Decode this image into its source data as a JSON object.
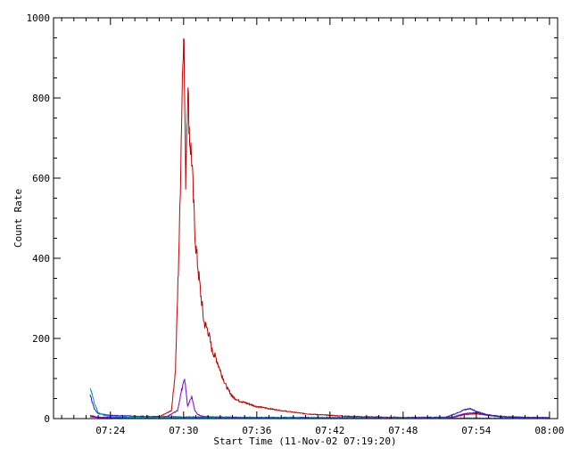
{
  "chart_data": {
    "type": "line",
    "title": "",
    "xlabel": "Start Time (11-Nov-02 07:19:20)",
    "ylabel": "Count Rate",
    "xlim": [
      "07:19:20",
      "08:00:40"
    ],
    "ylim": [
      0,
      1000
    ],
    "grid": false,
    "x_ticks": [
      "07:24",
      "07:30",
      "07:36",
      "07:42",
      "07:48",
      "07:54",
      "08:00"
    ],
    "y_ticks": [
      0,
      200,
      400,
      600,
      800,
      1000
    ],
    "colors": {
      "background": "#ffffff",
      "axes": "#000000",
      "red": "#c00000",
      "purple": "#7b00c8",
      "blue": "#2020d0",
      "cyan": "#00a0b0"
    },
    "series": [
      {
        "color_key": "red",
        "x": [
          "07:22:20",
          "07:23:00",
          "07:24:00",
          "07:26:00",
          "07:28:00",
          "07:29:00",
          "07:29:20",
          "07:29:40",
          "07:29:50",
          "07:30:00",
          "07:30:10",
          "07:30:20",
          "07:30:30",
          "07:30:40",
          "07:30:50",
          "07:31:00",
          "07:31:20",
          "07:31:40",
          "07:32:00",
          "07:32:20",
          "07:32:40",
          "07:33:00",
          "07:33:30",
          "07:34:00",
          "07:34:30",
          "07:35:00",
          "07:36:00",
          "07:38:00",
          "07:40:00",
          "07:42:00",
          "07:44:00",
          "07:46:00",
          "07:48:00",
          "07:50:00",
          "07:52:00",
          "07:53:00",
          "07:54:00",
          "07:56:00",
          "07:58:00",
          "08:00:00"
        ],
        "values": [
          8,
          3,
          2,
          2,
          4,
          20,
          120,
          480,
          750,
          1000,
          600,
          830,
          700,
          650,
          520,
          430,
          330,
          240,
          220,
          170,
          150,
          120,
          80,
          55,
          45,
          40,
          30,
          20,
          12,
          8,
          5,
          4,
          3,
          3,
          3,
          10,
          12,
          5,
          3,
          2
        ]
      },
      {
        "color_key": "purple",
        "x": [
          "07:22:20",
          "07:23:00",
          "07:26:00",
          "07:28:30",
          "07:29:30",
          "07:29:50",
          "07:30:05",
          "07:30:20",
          "07:30:40",
          "07:30:55",
          "07:31:10",
          "07:31:40",
          "07:33:00",
          "07:36:00",
          "07:48:00",
          "07:52:00",
          "07:53:00",
          "07:54:00",
          "07:56:00",
          "08:00:00"
        ],
        "values": [
          5,
          3,
          2,
          3,
          20,
          70,
          100,
          30,
          55,
          20,
          10,
          5,
          3,
          2,
          2,
          3,
          12,
          15,
          4,
          2
        ]
      },
      {
        "color_key": "blue",
        "x": [
          "07:22:20",
          "07:22:40",
          "07:23:00",
          "07:23:30",
          "07:24:00",
          "07:26:00",
          "07:30:00",
          "07:36:00",
          "07:48:00",
          "07:51:30",
          "07:52:30",
          "07:53:00",
          "07:53:30",
          "07:54:00",
          "07:55:00",
          "07:57:00",
          "08:00:00"
        ],
        "values": [
          60,
          25,
          12,
          10,
          8,
          6,
          4,
          3,
          2,
          3,
          15,
          22,
          25,
          18,
          8,
          3,
          2
        ]
      },
      {
        "color_key": "cyan",
        "x": [
          "07:22:20",
          "07:22:40",
          "07:23:00",
          "07:23:30",
          "07:24:00",
          "07:26:00",
          "07:30:00",
          "07:40:00",
          "08:00:00"
        ],
        "values": [
          80,
          40,
          15,
          8,
          5,
          3,
          2,
          2,
          1
        ]
      }
    ]
  }
}
